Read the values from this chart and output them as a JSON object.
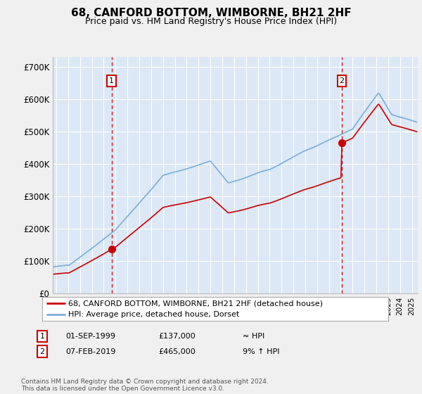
{
  "title": "68, CANFORD BOTTOM, WIMBORNE, BH21 2HF",
  "subtitle": "Price paid vs. HM Land Registry's House Price Index (HPI)",
  "ylabel_ticks": [
    "£0",
    "£100K",
    "£200K",
    "£300K",
    "£400K",
    "£500K",
    "£600K",
    "£700K"
  ],
  "ytick_values": [
    0,
    100000,
    200000,
    300000,
    400000,
    500000,
    600000,
    700000
  ],
  "ylim": [
    0,
    730000
  ],
  "xlim_start": 1994.7,
  "xlim_end": 2025.5,
  "background_color": "#f0f0f0",
  "plot_bg_color": "#dce8f5",
  "grid_color": "#ffffff",
  "line1_color": "#cc0000",
  "line2_color": "#7aaedc",
  "sale1_x": 1999.67,
  "sale1_y": 137000,
  "sale2_x": 2019.1,
  "sale2_y": 465000,
  "marker_color": "#cc0000",
  "marker_size": 7,
  "vline_color": "#cc0000",
  "legend_label1": "68, CANFORD BOTTOM, WIMBORNE, BH21 2HF (detached house)",
  "legend_label2": "HPI: Average price, detached house, Dorset",
  "table_row1": [
    "1",
    "01-SEP-1999",
    "£137,000",
    "≈ HPI"
  ],
  "table_row2": [
    "2",
    "07-FEB-2019",
    "£465,000",
    "9% ↑ HPI"
  ],
  "footer": "Contains HM Land Registry data © Crown copyright and database right 2024.\nThis data is licensed under the Open Government Licence v3.0."
}
